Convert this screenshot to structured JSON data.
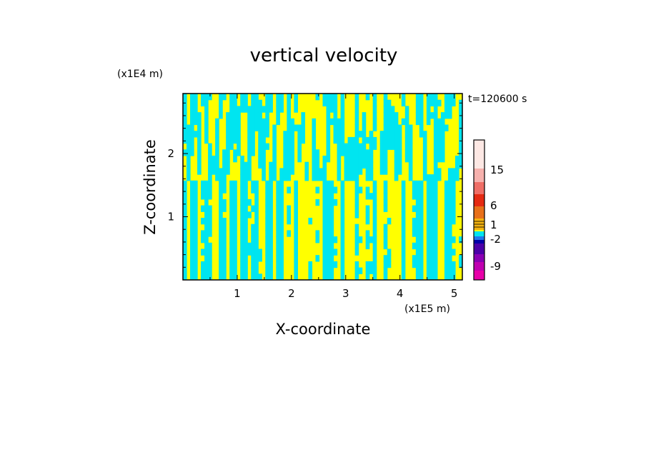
{
  "chart_data": {
    "type": "heatmap",
    "title": "vertical velocity",
    "xlabel": "X-coordinate",
    "ylabel": "Z-coordinate",
    "x_unit": "(x1E5 m)",
    "y_unit": "(x1E4 m)",
    "time_label": "t=120600 s",
    "xlim": [
      0,
      5.15
    ],
    "ylim": [
      0,
      2.95
    ],
    "x_ticks": [
      "1",
      "2",
      "3",
      "4",
      "5"
    ],
    "y_ticks": [
      "1",
      "2"
    ],
    "x_tick_values": [
      1,
      2,
      3,
      4,
      5
    ],
    "y_tick_values": [
      1,
      2
    ],
    "grid": false,
    "colorbar": {
      "labels": [
        "15",
        "6",
        "1",
        "-2",
        "-9"
      ],
      "colors_top_to_bottom": [
        "#fde8e4",
        "#f6b1ad",
        "#ef6e66",
        "#e52a12",
        "#e8701a",
        "#f3b210",
        "#ffff00",
        "#00e5f0",
        "#1e78ee",
        "#0000a8",
        "#4b00a8",
        "#8a00b3",
        "#c000b0",
        "#e800a8"
      ]
    },
    "dominant_colors": {
      "positive": "#ffff00",
      "negative": "#00e5f0"
    }
  }
}
